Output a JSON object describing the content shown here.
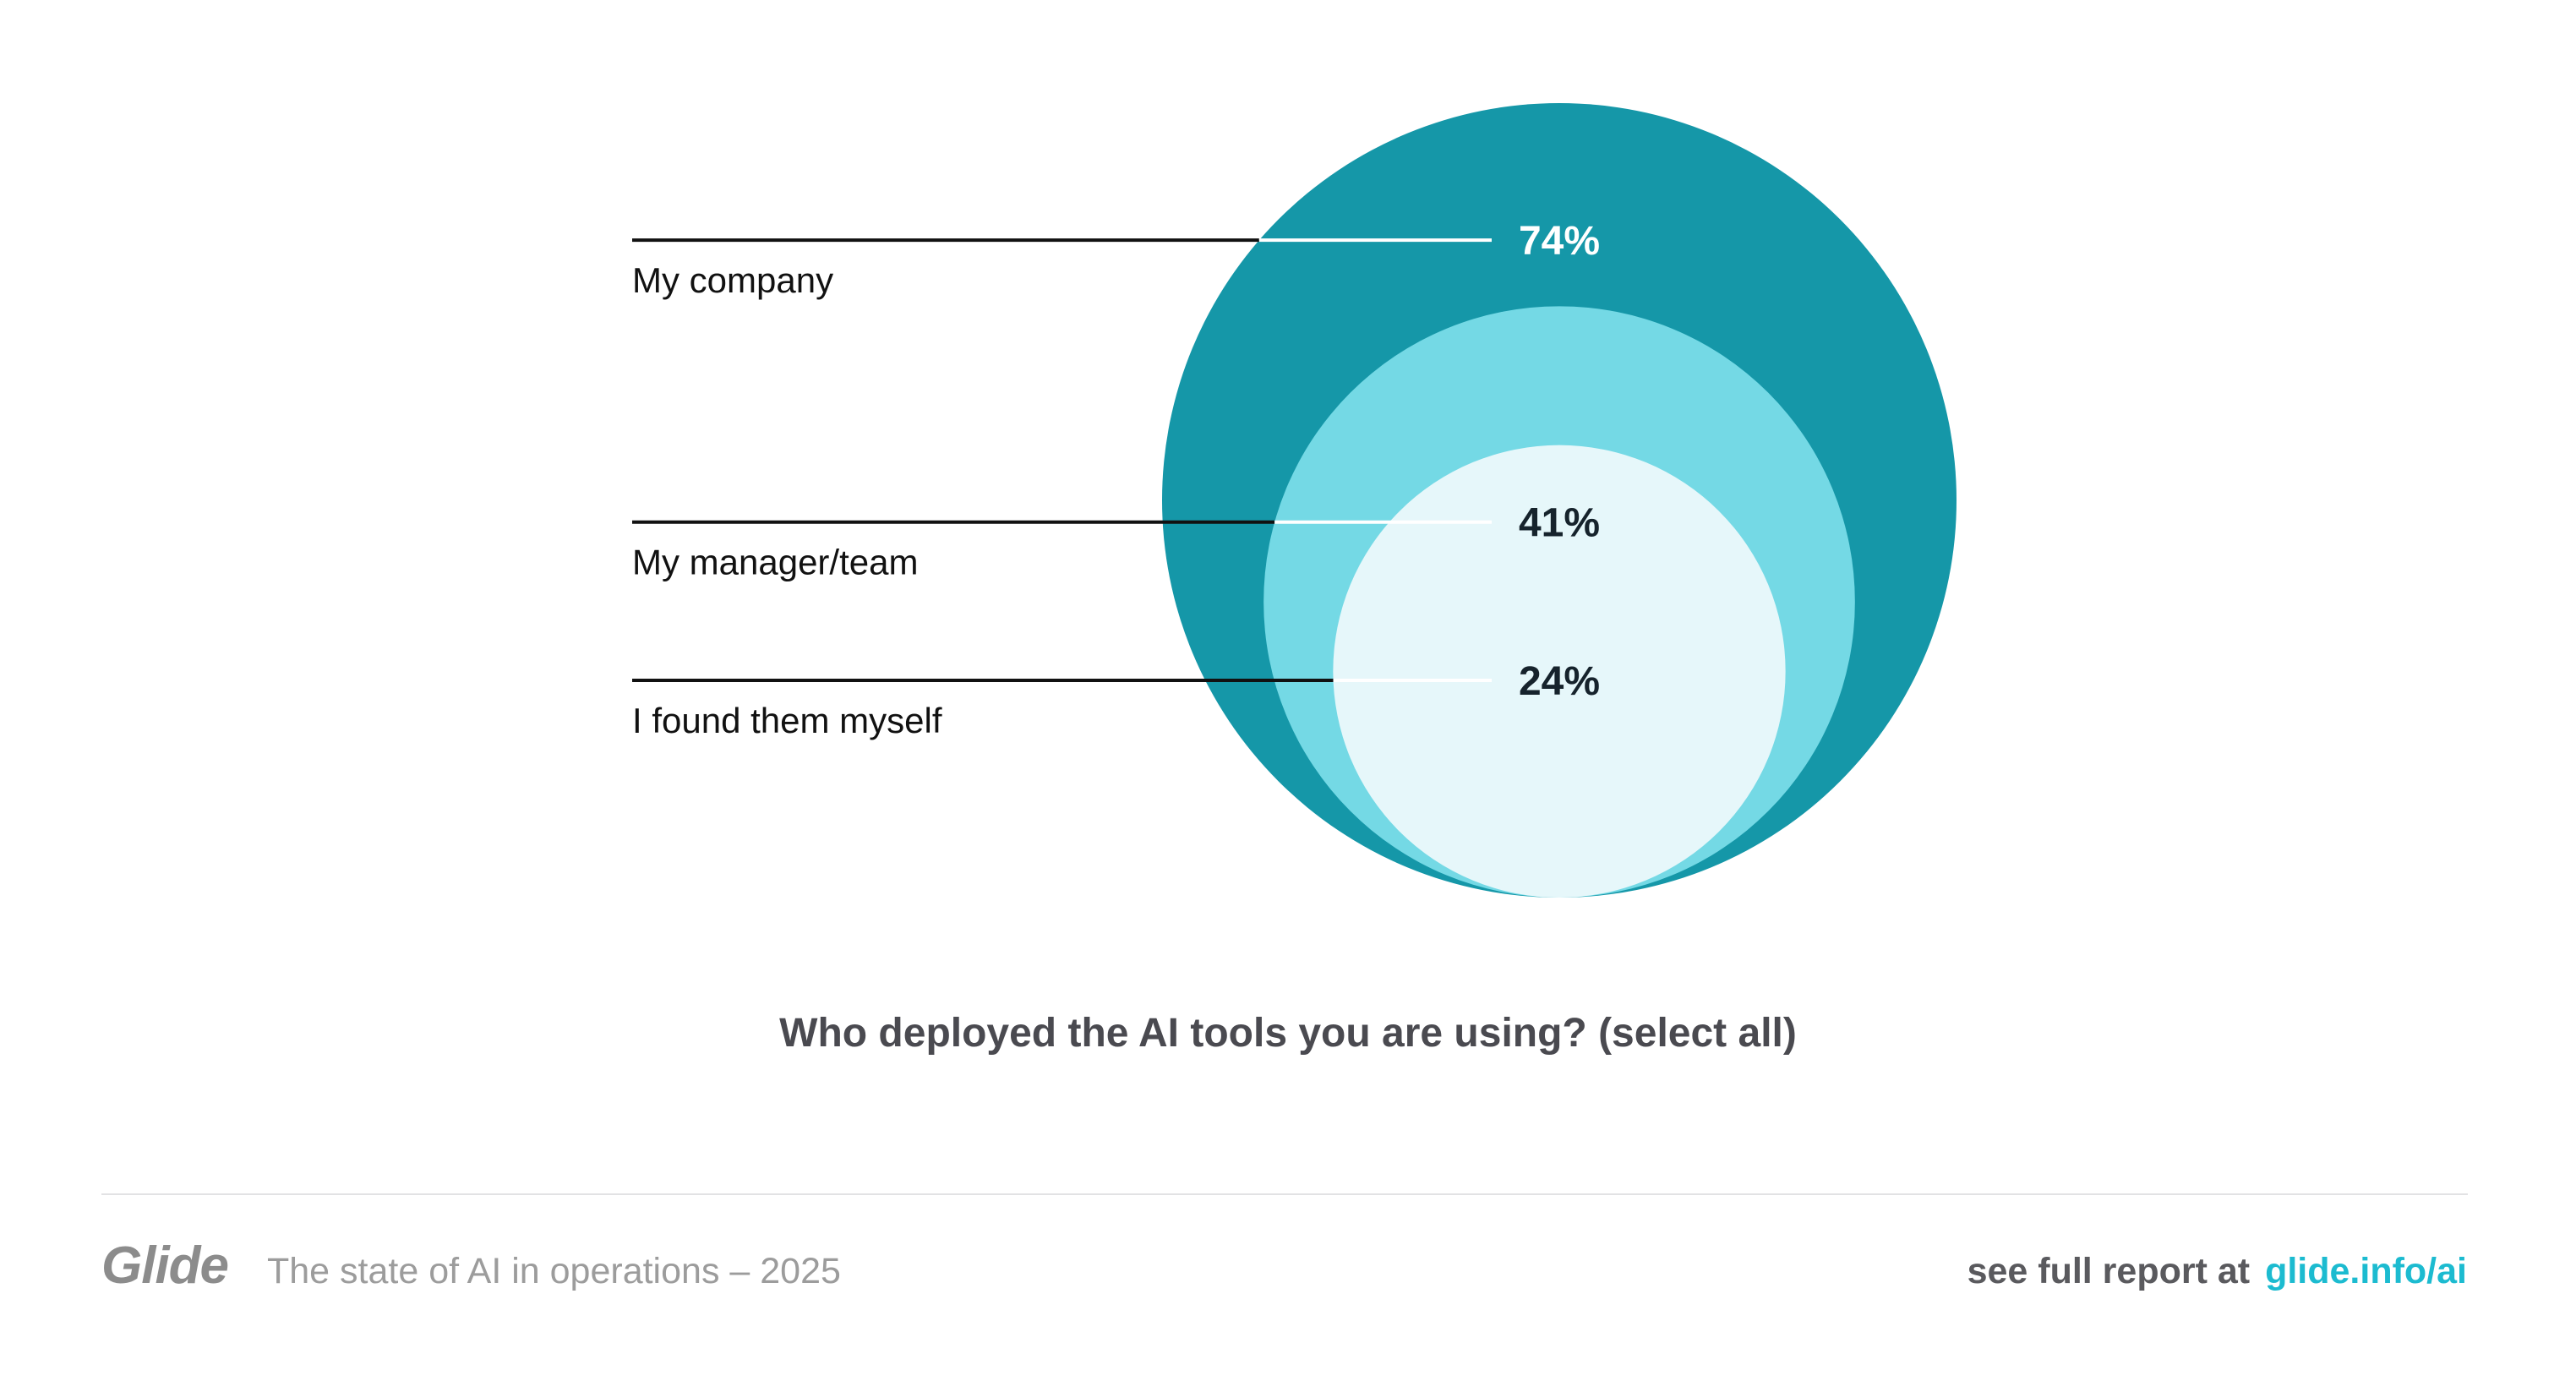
{
  "chart_data": {
    "type": "nested-bubble",
    "title": "Who deployed the AI tools you are using? (select all)",
    "categories": [
      "My company",
      "My manager/team",
      "I found them myself"
    ],
    "values": [
      74,
      41,
      24
    ],
    "value_labels": [
      "74%",
      "41%",
      "24%"
    ],
    "unit": "%",
    "colors": [
      "#1597a8",
      "#74d9e5",
      "#e6f7fa"
    ],
    "label_colors": [
      "#ffffff",
      "#16232c",
      "#16232c"
    ]
  },
  "footer": {
    "brand": "Glide",
    "report_title": "The state of AI in operations – 2025",
    "cta_label": "see full report at",
    "cta_link": "glide.info/ai",
    "cta_color": "#1cbbd0"
  }
}
